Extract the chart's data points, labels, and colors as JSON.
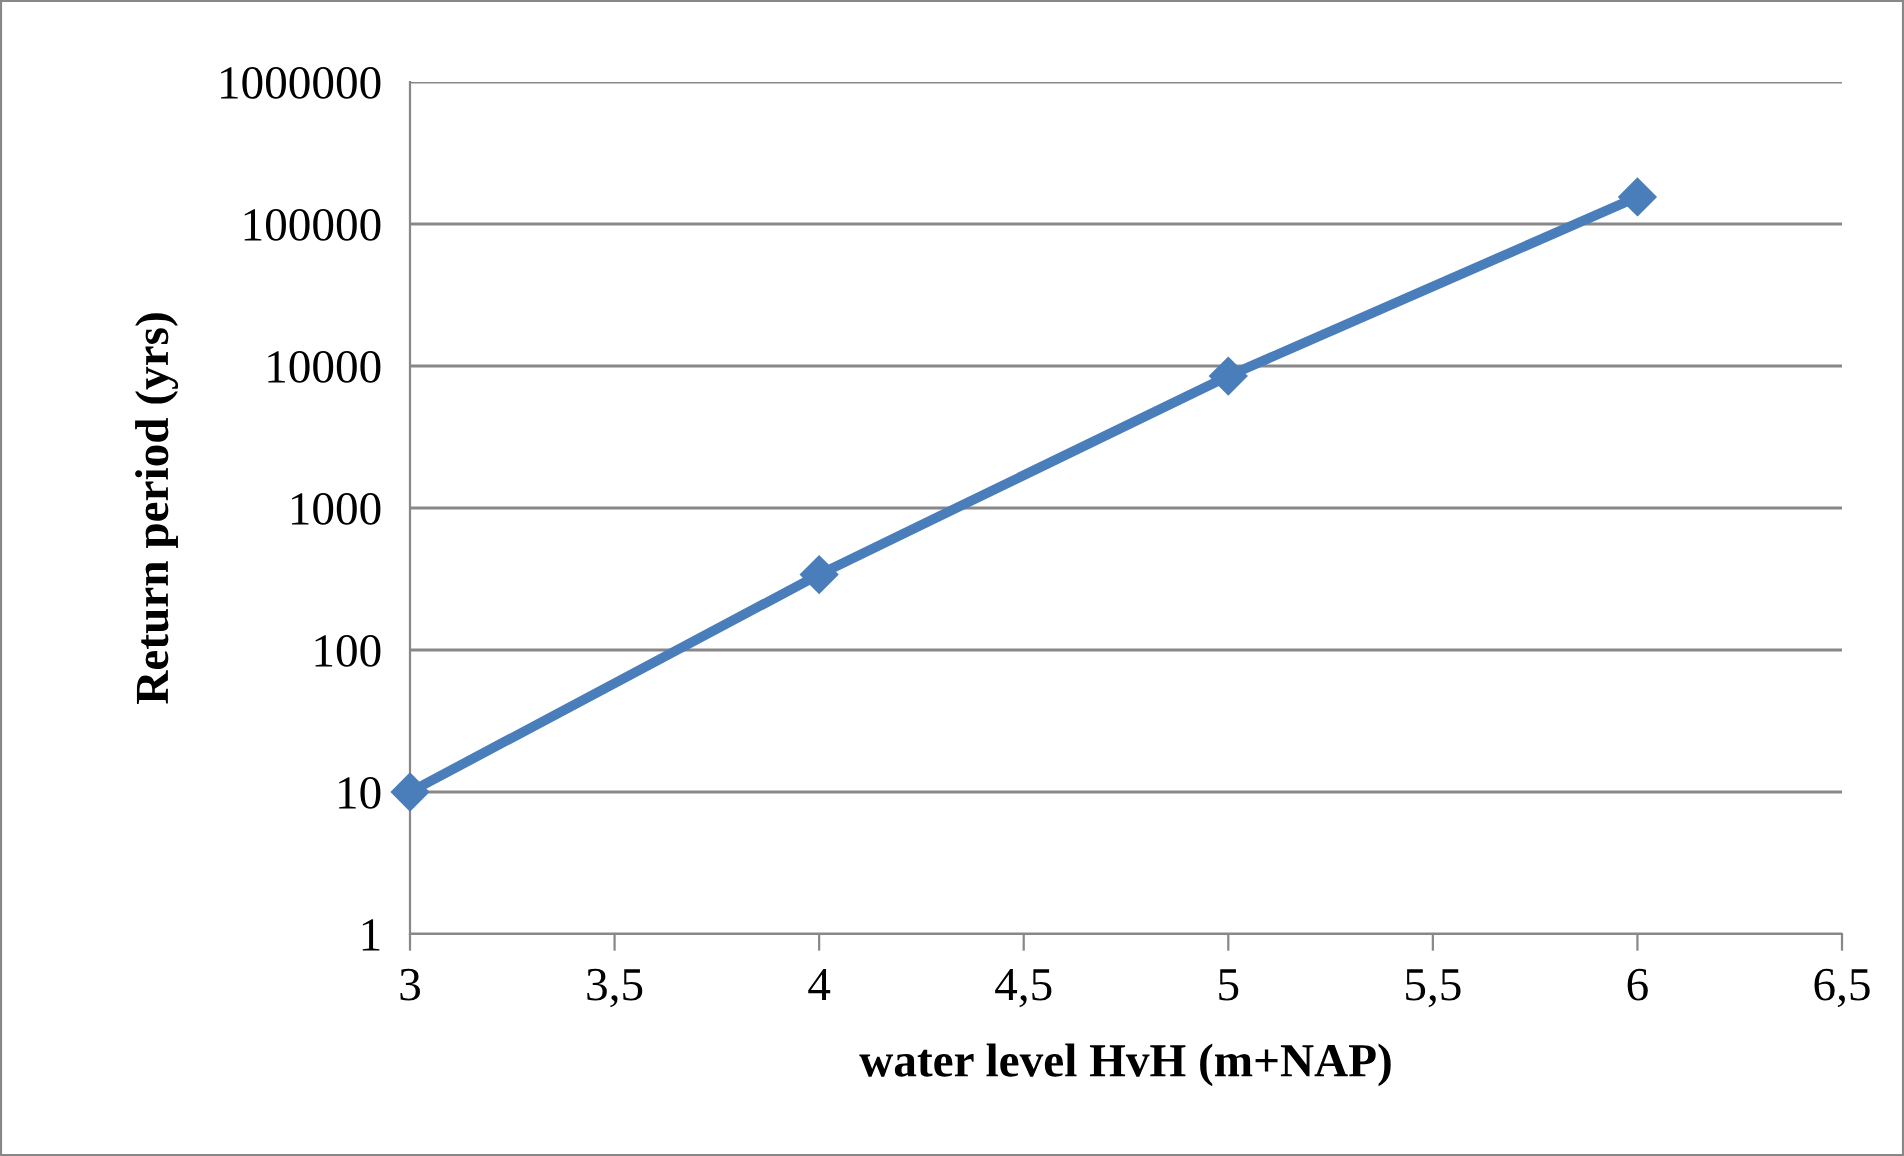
{
  "chart_data": {
    "type": "line",
    "xlabel": "water level HvH (m+NAP)",
    "ylabel": "Return period (yrs)",
    "x": [
      3,
      4,
      5,
      6
    ],
    "series": [
      {
        "color": "#4a7ebb",
        "values": [
          10,
          340,
          8500,
          155000
        ]
      }
    ],
    "log": "y",
    "marker": "diamond",
    "line_style": "solid",
    "grid": "y",
    "legend": false,
    "xlim": [
      3,
      6.5
    ],
    "xticks": [
      {
        "value": 3,
        "label": "3"
      },
      {
        "value": 3.5,
        "label": "3,5"
      },
      {
        "value": 4,
        "label": "4"
      },
      {
        "value": 4.5,
        "label": "4,5"
      },
      {
        "value": 5,
        "label": "5"
      },
      {
        "value": 5.5,
        "label": "5,5"
      },
      {
        "value": 6,
        "label": "6"
      },
      {
        "value": 6.5,
        "label": "6,5"
      }
    ],
    "ylim": [
      1,
      1000000
    ],
    "yticks": [
      1,
      10,
      100,
      1000,
      10000,
      100000,
      1000000
    ]
  }
}
